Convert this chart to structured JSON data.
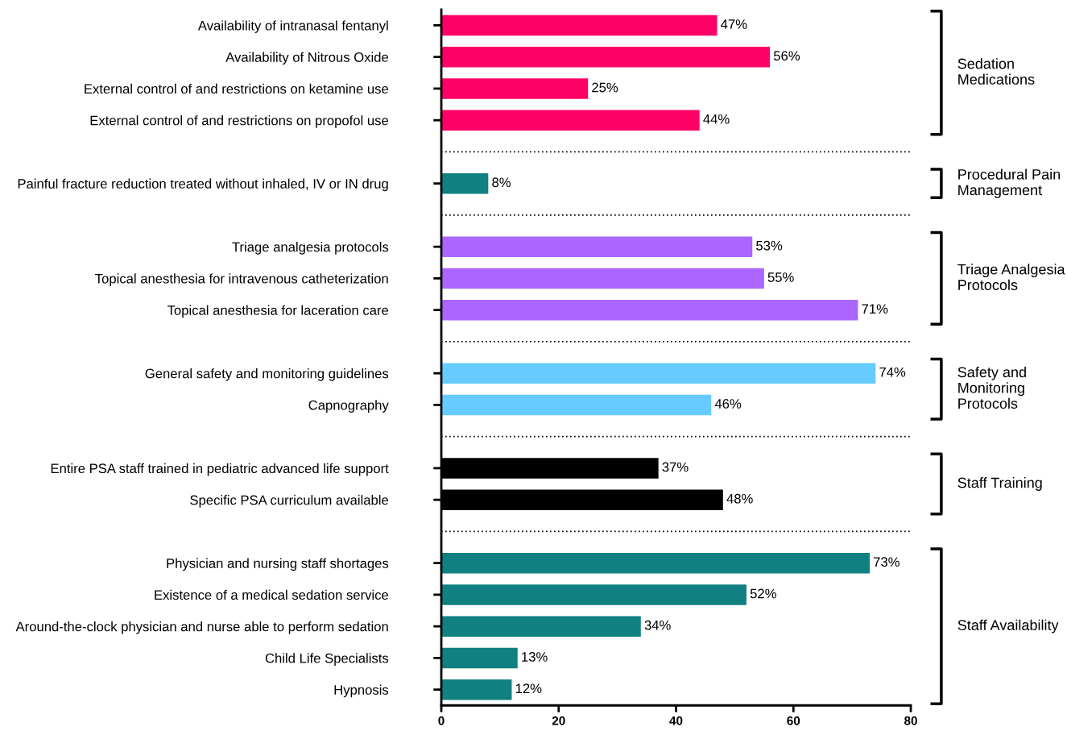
{
  "chart_data": {
    "type": "bar",
    "orientation": "horizontal",
    "categories": [
      "Availability of intranasal fentanyl",
      "Availability of Nitrous Oxide",
      "External control of and restrictions on ketamine use",
      "External control of and restrictions on propofol use",
      null,
      "Painful fracture reduction treated without inhaled, IV or IN drug",
      null,
      "Triage analgesia protocols",
      "Topical anesthesia for intravenous catheterization",
      "Topical anesthesia for laceration care",
      null,
      "General safety and monitoring guidelines",
      "Capnography",
      null,
      "Entire PSA staff trained in pediatric advanced life support",
      "Specific PSA curriculum available",
      null,
      "Physician and nursing staff shortages",
      "Existence of a medical sedation service",
      "Around-the-clock physician and nurse able to perform sedation",
      "Child Life Specialists",
      "Hypnosis"
    ],
    "values": [
      47,
      56,
      25,
      44,
      null,
      8,
      null,
      53,
      55,
      71,
      null,
      74,
      46,
      null,
      37,
      48,
      null,
      73,
      52,
      34,
      13,
      12
    ],
    "value_labels": [
      "47%",
      "56%",
      "25%",
      "44%",
      null,
      "8%",
      null,
      "53%",
      "55%",
      "71%",
      null,
      "74%",
      "46%",
      null,
      "37%",
      "48%",
      null,
      "73%",
      "52%",
      "34%",
      "13%",
      "12%"
    ],
    "colors": [
      "#ff0066",
      "#ff0066",
      "#ff0066",
      "#ff0066",
      null,
      "#108080",
      null,
      "#aa66ff",
      "#aa66ff",
      "#aa66ff",
      null,
      "#66ccff",
      "#66ccff",
      null,
      "#000000",
      "#000000",
      null,
      "#108080",
      "#108080",
      "#108080",
      "#108080",
      "#108080"
    ],
    "xlim": [
      0,
      80
    ],
    "xticks": [
      0,
      20,
      40,
      60,
      80
    ],
    "grid": false,
    "legend": false,
    "annotations": [
      "Sedation\nMedications",
      "Procedural Pain\nManagement",
      "Triage Analgesia\nProtocols",
      "Safety and\nMonitoring\nProtocols",
      "Staff Training",
      "Staff Availability"
    ]
  }
}
